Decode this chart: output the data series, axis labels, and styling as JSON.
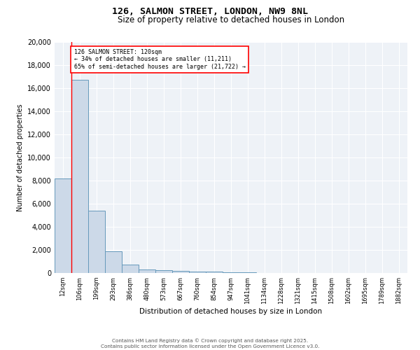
{
  "title1": "126, SALMON STREET, LONDON, NW9 8NL",
  "title2": "Size of property relative to detached houses in London",
  "xlabel": "Distribution of detached houses by size in London",
  "ylabel": "Number of detached properties",
  "bin_labels": [
    "12sqm",
    "106sqm",
    "199sqm",
    "293sqm",
    "386sqm",
    "480sqm",
    "573sqm",
    "667sqm",
    "760sqm",
    "854sqm",
    "947sqm",
    "1041sqm",
    "1134sqm",
    "1228sqm",
    "1321sqm",
    "1415sqm",
    "1508sqm",
    "1602sqm",
    "1695sqm",
    "1789sqm",
    "1882sqm"
  ],
  "bar_heights": [
    8200,
    16700,
    5400,
    1850,
    700,
    300,
    220,
    175,
    150,
    130,
    80,
    50,
    30,
    20,
    15,
    10,
    8,
    6,
    5,
    4,
    3
  ],
  "bar_color": "#ccd9e8",
  "bar_edge_color": "#6699bb",
  "annotation_text_line1": "126 SALMON STREET: 120sqm",
  "annotation_text_line2": "← 34% of detached houses are smaller (11,211)",
  "annotation_text_line3": "65% of semi-detached houses are larger (21,722) →",
  "red_line_x": 1,
  "ylim": [
    0,
    20000
  ],
  "yticks": [
    0,
    2000,
    4000,
    6000,
    8000,
    10000,
    12000,
    14000,
    16000,
    18000,
    20000
  ],
  "footer1": "Contains HM Land Registry data © Crown copyright and database right 2025.",
  "footer2": "Contains public sector information licensed under the Open Government Licence v3.0.",
  "background_color": "#eef2f7"
}
